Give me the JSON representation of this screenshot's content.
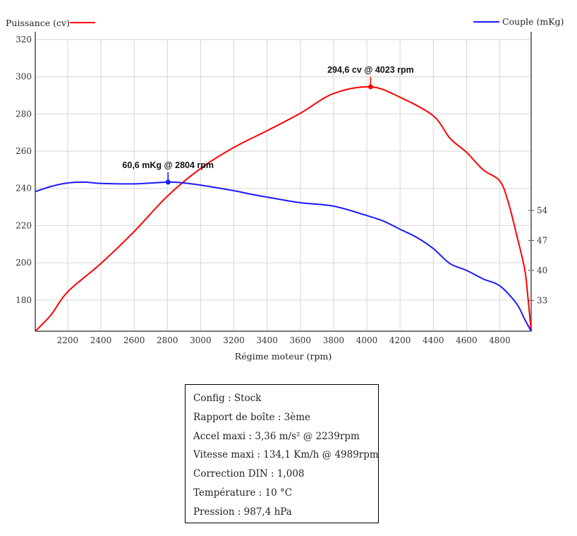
{
  "chart_data": {
    "type": "line",
    "xlabel": "Régime moteur (rpm)",
    "xlim": [
      2005,
      4989
    ],
    "xticks": [
      2200,
      2400,
      2600,
      2800,
      3000,
      3200,
      3400,
      3600,
      3800,
      4000,
      4200,
      4400,
      4600,
      4800
    ],
    "y_left": {
      "label": "Puissance (cv)",
      "lim": [
        163.2,
        324.2
      ],
      "ticks": [
        180,
        200,
        220,
        240,
        260,
        280,
        300,
        320
      ]
    },
    "y_right": {
      "label": "Couple (mKg)",
      "lim": [
        25.8,
        95.7
      ],
      "ticks": [
        33,
        40,
        47,
        54
      ]
    },
    "grid": true,
    "series": [
      {
        "name": "Puissance (cv)",
        "axis": "left",
        "color": "#ff0000",
        "x": [
          2005,
          2100,
          2200,
          2400,
          2600,
          2800,
          3000,
          3200,
          3400,
          3600,
          3800,
          4023,
          4200,
          4400,
          4500,
          4600,
          4700,
          4800,
          4850,
          4900,
          4950,
          4970,
          4989
        ],
        "y": [
          163.2,
          172,
          184.4,
          199.6,
          216.8,
          235.8,
          250.7,
          262,
          271,
          280.4,
          291,
          294.6,
          289,
          279,
          267,
          259.4,
          250,
          244,
          233,
          215.6,
          196.6,
          181,
          163.2
        ]
      },
      {
        "name": "Couple (mKg)",
        "axis": "right",
        "color": "#1a1aff",
        "x": [
          2005,
          2100,
          2200,
          2300,
          2400,
          2600,
          2804,
          2900,
          3000,
          3200,
          3300,
          3400,
          3600,
          3800,
          4000,
          4100,
          4200,
          4300,
          4400,
          4500,
          4600,
          4700,
          4800,
          4900,
          4950,
          4989
        ],
        "y": [
          58.4,
          59.6,
          60.4,
          60.6,
          60.3,
          60.2,
          60.6,
          60.4,
          59.9,
          58.6,
          57.8,
          57.1,
          55.8,
          55,
          52.8,
          51.5,
          49.6,
          47.7,
          45.1,
          41.6,
          40,
          38,
          36.4,
          32.3,
          28.6,
          25.8
        ]
      }
    ],
    "annotations": [
      {
        "text": "294,6 cv @ 4023 rpm",
        "series": 0,
        "x": 4023,
        "y": 294.6
      },
      {
        "text": "60,6 mKg @ 2804 rpm",
        "series": 1,
        "x": 2804,
        "y": 60.6
      }
    ],
    "legend": [
      "top-left",
      "top-right"
    ]
  },
  "info": [
    "Config : Stock",
    "Rapport de boîte : 3ème",
    "Accel maxi : 3,36 m/s² @ 2239rpm",
    "Vitesse maxi : 134,1 Km/h @ 4989rpm",
    "Correction DIN : 1,008",
    "Température : 10 °C",
    "Pression : 987,4 hPa"
  ]
}
